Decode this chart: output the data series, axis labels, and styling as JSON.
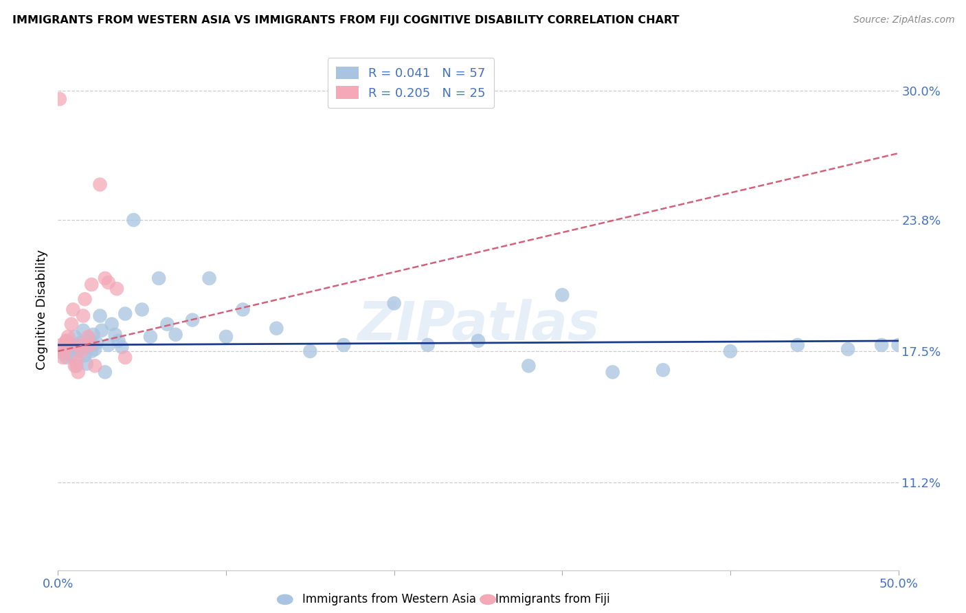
{
  "title": "IMMIGRANTS FROM WESTERN ASIA VS IMMIGRANTS FROM FIJI COGNITIVE DISABILITY CORRELATION CHART",
  "source": "Source: ZipAtlas.com",
  "ylabel": "Cognitive Disability",
  "xlim": [
    0.0,
    0.5
  ],
  "ylim": [
    0.07,
    0.32
  ],
  "yticks": [
    0.112,
    0.175,
    0.238,
    0.3
  ],
  "ytick_labels": [
    "11.2%",
    "17.5%",
    "23.8%",
    "30.0%"
  ],
  "xticks": [
    0.0,
    0.1,
    0.2,
    0.3,
    0.4,
    0.5
  ],
  "xtick_labels": [
    "0.0%",
    "",
    "",
    "",
    "",
    "50.0%"
  ],
  "grid_color": "#cccccc",
  "axis_color": "#4472c4",
  "western_asia_color": "#a8c4e0",
  "fiji_color": "#f4a8b8",
  "trend_western_asia_color": "#1a3a8a",
  "trend_fiji_color": "#d4607a",
  "watermark": "ZIPatlas",
  "western_asia_x": [
    0.002,
    0.003,
    0.004,
    0.005,
    0.005,
    0.006,
    0.007,
    0.008,
    0.009,
    0.01,
    0.011,
    0.012,
    0.013,
    0.014,
    0.015,
    0.016,
    0.017,
    0.018,
    0.019,
    0.02,
    0.021,
    0.022,
    0.023,
    0.025,
    0.026,
    0.028,
    0.03,
    0.032,
    0.034,
    0.036,
    0.038,
    0.04,
    0.045,
    0.05,
    0.055,
    0.06,
    0.065,
    0.07,
    0.08,
    0.09,
    0.1,
    0.11,
    0.13,
    0.15,
    0.17,
    0.2,
    0.22,
    0.25,
    0.28,
    0.3,
    0.33,
    0.36,
    0.4,
    0.44,
    0.47,
    0.49,
    0.5
  ],
  "western_asia_y": [
    0.176,
    0.174,
    0.178,
    0.18,
    0.172,
    0.178,
    0.176,
    0.173,
    0.178,
    0.182,
    0.168,
    0.175,
    0.179,
    0.177,
    0.185,
    0.173,
    0.169,
    0.178,
    0.181,
    0.175,
    0.183,
    0.176,
    0.179,
    0.192,
    0.185,
    0.165,
    0.178,
    0.188,
    0.183,
    0.18,
    0.177,
    0.193,
    0.238,
    0.195,
    0.182,
    0.21,
    0.188,
    0.183,
    0.19,
    0.21,
    0.182,
    0.195,
    0.186,
    0.175,
    0.178,
    0.198,
    0.178,
    0.18,
    0.168,
    0.202,
    0.165,
    0.166,
    0.175,
    0.178,
    0.176,
    0.178,
    0.178
  ],
  "fiji_x": [
    0.001,
    0.002,
    0.003,
    0.004,
    0.005,
    0.006,
    0.007,
    0.008,
    0.009,
    0.01,
    0.011,
    0.012,
    0.013,
    0.014,
    0.015,
    0.016,
    0.018,
    0.019,
    0.02,
    0.022,
    0.025,
    0.028,
    0.03,
    0.035,
    0.04
  ],
  "fiji_y": [
    0.296,
    0.178,
    0.172,
    0.175,
    0.18,
    0.182,
    0.178,
    0.188,
    0.195,
    0.168,
    0.17,
    0.165,
    0.178,
    0.175,
    0.192,
    0.2,
    0.182,
    0.178,
    0.207,
    0.168,
    0.255,
    0.21,
    0.208,
    0.205,
    0.172
  ],
  "trend_wa_x0": 0.0,
  "trend_wa_x1": 0.5,
  "trend_wa_y0": 0.178,
  "trend_wa_y1": 0.18,
  "trend_fiji_x0": 0.0,
  "trend_fiji_x1": 0.5,
  "trend_fiji_y0": 0.175,
  "trend_fiji_y1": 0.27
}
